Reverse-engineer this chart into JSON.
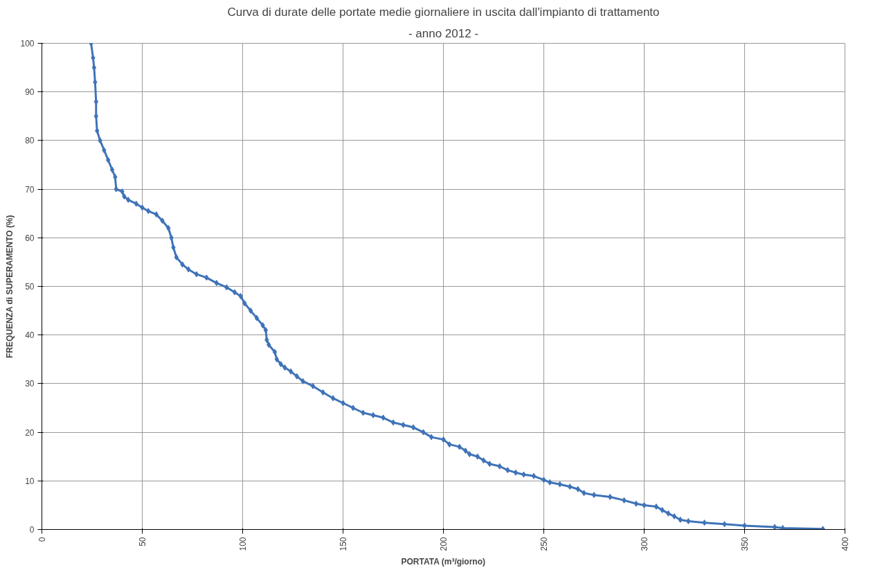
{
  "chart_data": {
    "type": "line",
    "title": "Curva di durate delle portate medie giornaliere in uscita dall'impianto di trattamento",
    "subtitle": "- anno 2012 -",
    "xlabel": "PORTATA (m³/giorno)",
    "ylabel": "FREQUENZA di SUPERAMENTO (%)",
    "xlim": [
      0,
      400
    ],
    "xticks": [
      0,
      50,
      100,
      150,
      200,
      250,
      300,
      350,
      400
    ],
    "ylim": [
      0,
      100
    ],
    "yticks": [
      0,
      10,
      20,
      30,
      40,
      50,
      60,
      70,
      80,
      90,
      100
    ],
    "grid": true,
    "marker": "diamond",
    "line_style": "solid",
    "series": [
      {
        "color": "#3f73b8",
        "x": [
          24.5,
          25.5,
          26,
          26.5,
          27,
          27,
          27.5,
          29,
          31,
          33,
          35,
          36.5,
          37,
          40,
          41,
          43,
          47,
          50,
          53,
          57,
          60,
          63,
          64.5,
          65.5,
          67,
          70,
          73,
          77,
          82,
          87,
          92,
          96,
          99,
          101,
          104,
          107,
          110,
          111.5,
          112,
          113,
          116,
          117,
          119,
          121,
          124,
          127,
          130,
          135,
          140,
          145,
          150,
          155,
          160,
          165,
          170,
          175,
          180,
          185,
          190,
          194,
          200,
          203,
          208,
          211,
          213,
          217,
          220,
          223,
          228,
          232,
          236,
          240,
          245,
          250,
          253,
          258,
          263,
          267,
          270,
          275,
          283,
          290,
          296,
          300,
          306,
          309,
          312,
          315,
          318,
          322,
          330,
          340,
          350,
          365,
          369,
          389
        ],
        "values": [
          100,
          97,
          95,
          92,
          88,
          85,
          82,
          80,
          78,
          76,
          74,
          72.5,
          70,
          69.5,
          68.5,
          67.8,
          67,
          66.2,
          65.5,
          64.8,
          63.5,
          62,
          60,
          58,
          56,
          54.5,
          53.5,
          52.5,
          51.8,
          50.7,
          49.8,
          48.8,
          48,
          46.5,
          45,
          43.5,
          42,
          41,
          39,
          38,
          36.5,
          35,
          34,
          33.3,
          32.5,
          31.5,
          30.5,
          29.5,
          28.2,
          27,
          26,
          25,
          24,
          23.5,
          23,
          22,
          21.5,
          21,
          20,
          19,
          18.5,
          17.5,
          17,
          16.2,
          15.5,
          15,
          14.2,
          13.5,
          13,
          12.2,
          11.7,
          11.3,
          11,
          10.2,
          9.7,
          9.3,
          8.8,
          8.3,
          7.5,
          7.1,
          6.7,
          6,
          5.3,
          5,
          4.7,
          4,
          3.3,
          2.7,
          2,
          1.7,
          1.4,
          1.1,
          0.8,
          0.5,
          0.3,
          0.1
        ]
      }
    ]
  }
}
